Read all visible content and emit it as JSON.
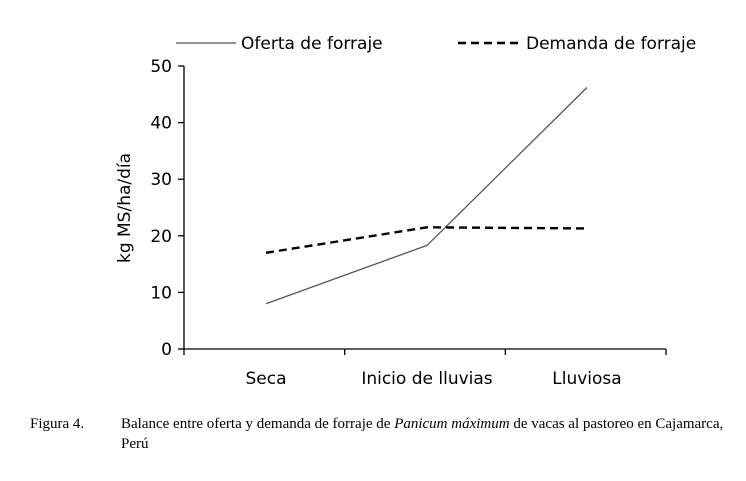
{
  "chart_data": {
    "type": "line",
    "categories": [
      "Seca",
      "Inicio de lluvias",
      "Lluviosa"
    ],
    "series": [
      {
        "name": "Oferta de forraje",
        "values": [
          8,
          18.3,
          46.2
        ],
        "style": "solid",
        "color": "#555555"
      },
      {
        "name": "Demanda de forraje",
        "values": [
          17,
          21.5,
          21.3
        ],
        "style": "dashed",
        "color": "#000000"
      }
    ],
    "title": "",
    "xlabel": "",
    "ylabel": "kg MS/ha/día",
    "ylim": [
      0,
      50
    ],
    "yticks": [
      "0",
      "10",
      "20",
      "30",
      "40",
      "50"
    ],
    "grid": false,
    "legend": "top"
  },
  "caption": {
    "label": "Figura 4.",
    "text_before": "Balance entre oferta y demanda de forraje de ",
    "text_italic": "Panicum máximum",
    "text_after": " de vacas al pastoreo en Cajamarca, Perú"
  }
}
